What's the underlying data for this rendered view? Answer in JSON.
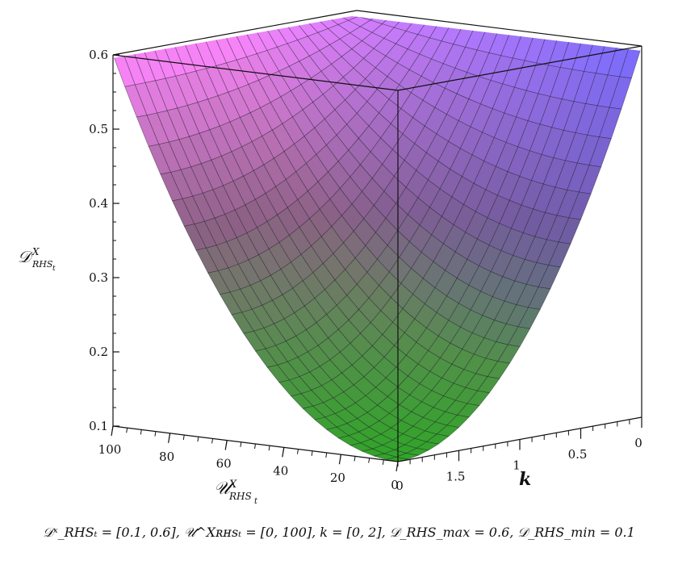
{
  "chart_data": {
    "type": "surface",
    "title": "",
    "zlabel": "D^X_RHS_t",
    "xlabel": "U^X_RHS_t",
    "ylabel": "k",
    "zlabel_main": "𝒟",
    "zlabel_sup": "X",
    "zlabel_sub": "RHS",
    "zlabel_subsub": "t",
    "xlabel_main": "𝒰",
    "xlabel_sup": "X",
    "xlabel_sub": "RHS",
    "xlabel_subsub": "t",
    "ylabel_text": "k",
    "zlim": [
      0.1,
      0.6
    ],
    "xlim": [
      0,
      100
    ],
    "ylim": [
      0,
      2
    ],
    "z_ticks": [
      "0.1",
      "0.2",
      "0.3",
      "0.4",
      "0.5",
      "0.6"
    ],
    "x_ticks": [
      "100",
      "80",
      "60",
      "40",
      "20",
      "0"
    ],
    "y_ticks": [
      "1.5",
      "1",
      "0.5",
      "0"
    ],
    "grid_lines": 24,
    "colors": {
      "low": "#46e43a",
      "mid": "#9a6a92",
      "high": "#f07ef0",
      "edge": "#5a62ee"
    }
  },
  "caption": "𝒟ˣ_RHSₜ = [0.1, 0.6], 𝒰^Xʀʜsₜ = [0, 100], k = [0, 2], 𝒟_RHS_max = 0.6, 𝒟_RHS_min = 0.1"
}
